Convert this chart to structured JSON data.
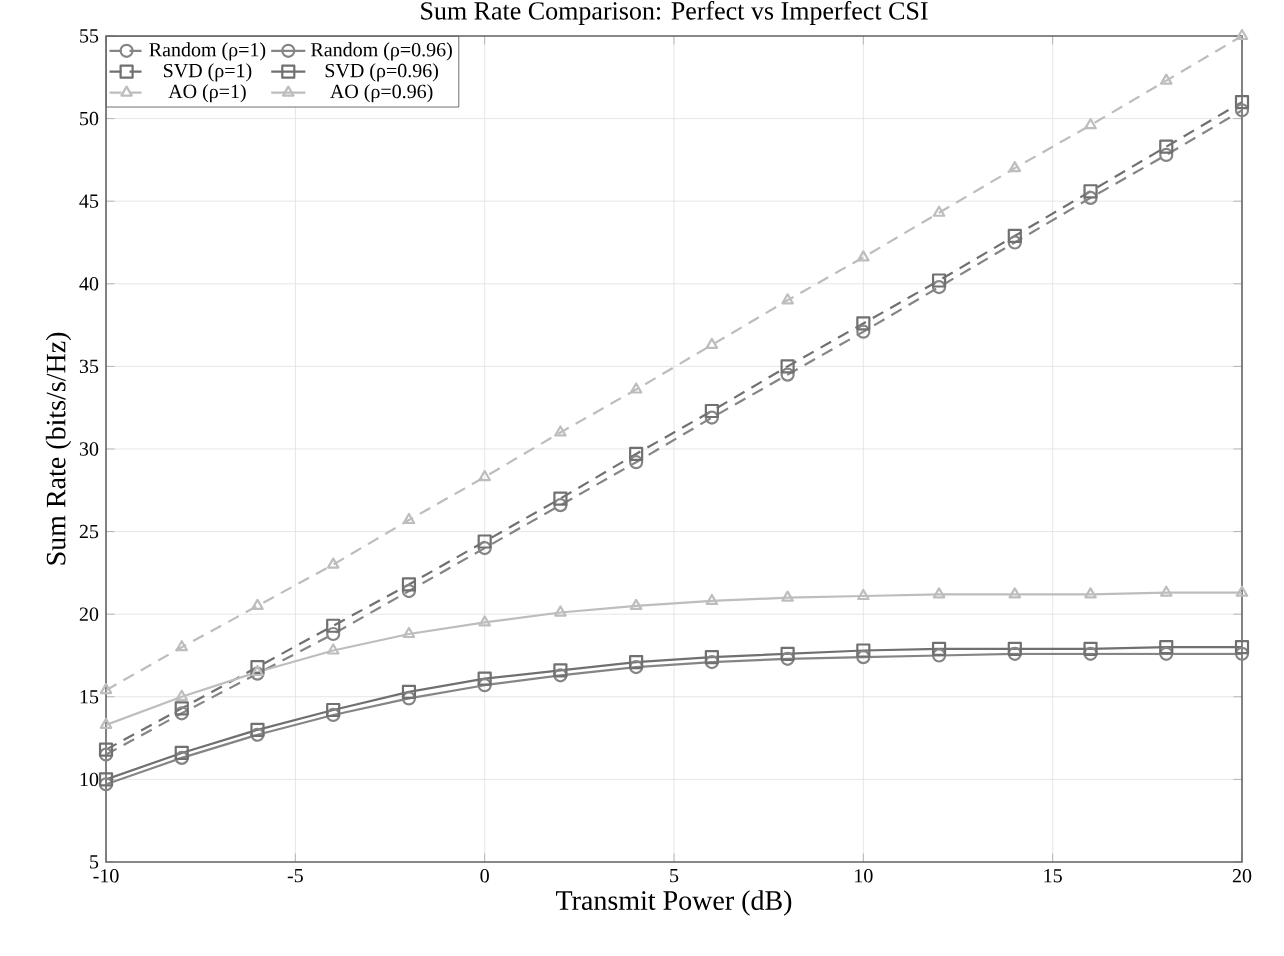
{
  "chart_data": {
    "type": "line",
    "title": "Sum Rate Comparison: Perfect vs Imperfect CSI",
    "xlabel": "Transmit Power (dB)",
    "ylabel": "Sum Rate (bits/s/Hz)",
    "x": [
      -10,
      -8,
      -6,
      -4,
      -2,
      0,
      2,
      4,
      6,
      8,
      10,
      12,
      14,
      16,
      18,
      20
    ],
    "series": [
      {
        "name": "Random  (ρ=1)",
        "color": "#858585",
        "marker": "circle",
        "line_style": "dashed",
        "values": [
          11.5,
          14,
          16.4,
          18.8,
          21.4,
          24,
          26.6,
          29.2,
          31.9,
          34.5,
          37.1,
          39.8,
          42.5,
          45.2,
          47.8,
          50.5
        ]
      },
      {
        "name": "Random  (ρ=0.96)",
        "color": "#858585",
        "marker": "circle",
        "line_style": "solid",
        "values": [
          9.7,
          11.3,
          12.7,
          13.9,
          14.9,
          15.7,
          16.3,
          16.8,
          17.1,
          17.3,
          17.4,
          17.5,
          17.6,
          17.6,
          17.6,
          17.6
        ]
      },
      {
        "name": "SVD  (ρ=1)",
        "color": "#707070",
        "marker": "square",
        "line_style": "dashed",
        "values": [
          11.8,
          14.3,
          16.8,
          19.3,
          21.8,
          24.4,
          27,
          29.7,
          32.3,
          35,
          37.6,
          40.2,
          42.9,
          45.6,
          48.3,
          51
        ]
      },
      {
        "name": "SVD  (ρ=0.96)",
        "color": "#707070",
        "marker": "square",
        "line_style": "solid",
        "values": [
          10,
          11.6,
          13,
          14.2,
          15.3,
          16.1,
          16.6,
          17.1,
          17.4,
          17.6,
          17.8,
          17.9,
          17.9,
          17.9,
          18,
          18
        ]
      },
      {
        "name": "AO  (ρ=1)",
        "color": "#bdbdbd",
        "marker": "triangle",
        "line_style": "dashed",
        "values": [
          15.4,
          18,
          20.5,
          23,
          25.7,
          28.3,
          31,
          33.6,
          36.3,
          39,
          41.6,
          44.3,
          47,
          49.6,
          52.3,
          55
        ]
      },
      {
        "name": "AO  (ρ=0.96)",
        "color": "#bdbdbd",
        "marker": "triangle",
        "line_style": "solid",
        "values": [
          13.3,
          15,
          16.5,
          17.8,
          18.8,
          19.5,
          20.1,
          20.5,
          20.8,
          21,
          21.1,
          21.2,
          21.2,
          21.2,
          21.3,
          21.3
        ]
      }
    ],
    "xlim": [
      -10,
      20
    ],
    "xticks": [
      -10,
      -5,
      0,
      5,
      10,
      15,
      20
    ],
    "ylim": [
      5,
      55
    ],
    "yticks": [
      5,
      10,
      15,
      20,
      25,
      30,
      35,
      40,
      45,
      50,
      55
    ],
    "grid": true,
    "legend": "top left"
  }
}
